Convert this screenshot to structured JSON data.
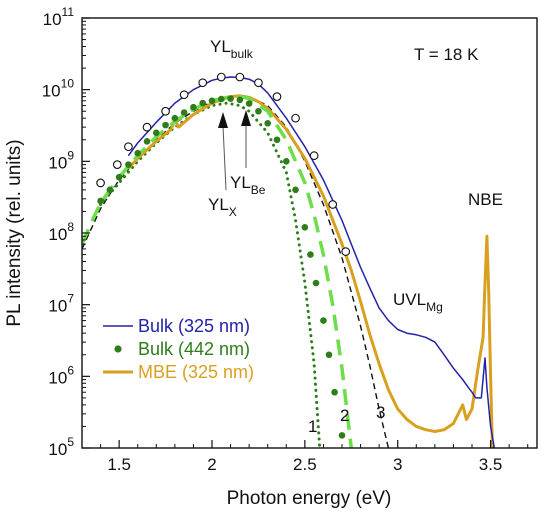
{
  "chart_data": {
    "type": "line",
    "xlabel": "Photon energy (eV)",
    "ylabel": "PL intensity (rel. units)",
    "xlim": [
      1.3,
      3.75
    ],
    "ylim": [
      100000,
      100000000000
    ],
    "yscale": "log",
    "x_ticks": [
      1.5,
      2,
      2.5,
      3,
      3.5
    ],
    "x_tick_labels": [
      "1.5",
      "2",
      "2.5",
      "3",
      "3.5"
    ],
    "y_ticks": [
      {
        "value": 100000,
        "base": "10",
        "exp": "5"
      },
      {
        "value": 1000000,
        "base": "10",
        "exp": "6"
      },
      {
        "value": 10000000,
        "base": "10",
        "exp": "7"
      },
      {
        "value": 100000000,
        "base": "10",
        "exp": "8"
      },
      {
        "value": 1000000000,
        "base": "10",
        "exp": "9"
      },
      {
        "value": 10000000000,
        "base": "10",
        "exp": "10"
      },
      {
        "value": 100000000000,
        "base": "10",
        "exp": "11"
      }
    ],
    "grid": false,
    "legend_position": "lower-left",
    "series": [
      {
        "name": "Bulk (325 nm)",
        "color": "#2222aa",
        "style": "solid-line",
        "x": [
          1.55,
          1.6,
          1.7,
          1.8,
          1.9,
          2.0,
          2.05,
          2.1,
          2.15,
          2.2,
          2.25,
          2.3,
          2.4,
          2.5,
          2.6,
          2.7,
          2.75,
          2.8,
          2.85,
          2.9,
          2.95,
          3.0,
          3.05,
          3.1,
          3.15,
          3.2,
          3.25,
          3.3,
          3.35,
          3.38,
          3.4,
          3.42,
          3.45,
          3.47,
          3.48,
          3.5,
          3.52
        ],
        "y": [
          1200000000,
          1800000000,
          3500000000,
          6500000000,
          10000000000,
          13500000000,
          14500000000,
          15000000000,
          14800000000,
          14000000000,
          12000000000,
          9000000000,
          4000000000,
          1600000000,
          550000000,
          150000000,
          70000000,
          33000000,
          17000000,
          9000000,
          6000000,
          4500000,
          4000000,
          3800000,
          3500000,
          3000000,
          2000000,
          1300000,
          900000,
          700000,
          600000,
          500000,
          500000,
          1800000,
          700000,
          200000,
          100000
        ]
      },
      {
        "name": "Bulk (442 nm)",
        "color": "#2e7d1a",
        "style": "dots",
        "x": [
          1.4,
          1.45,
          1.5,
          1.55,
          1.6,
          1.65,
          1.7,
          1.75,
          1.8,
          1.85,
          1.9,
          1.95,
          2.0,
          2.05,
          2.1,
          2.15,
          2.2,
          2.25,
          2.3,
          2.35,
          2.4,
          2.45,
          2.5,
          2.53,
          2.56,
          2.6,
          2.63,
          2.66,
          2.7
        ],
        "y": [
          280000000,
          400000000,
          600000000,
          900000000,
          1300000000,
          1900000000,
          2500000000,
          3200000000,
          4000000000,
          4800000000,
          5700000000,
          6500000000,
          7000000000,
          7400000000,
          7500000000,
          7200000000,
          6400000000,
          5000000000,
          3400000000,
          2000000000,
          1000000000,
          400000000,
          120000000,
          50000000,
          20000000,
          6000000,
          2000000,
          600000,
          150000
        ]
      },
      {
        "name": "MBE (325 nm)",
        "color": "#d9a020",
        "style": "thick-line",
        "x": [
          1.55,
          1.6,
          1.7,
          1.78,
          1.8,
          1.82,
          1.9,
          2.0,
          2.1,
          2.15,
          2.2,
          2.25,
          2.3,
          2.4,
          2.5,
          2.6,
          2.7,
          2.75,
          2.8,
          2.85,
          2.9,
          2.95,
          3.0,
          3.05,
          3.1,
          3.15,
          3.2,
          3.25,
          3.3,
          3.35,
          3.37,
          3.4,
          3.43,
          3.46,
          3.47,
          3.48,
          3.49,
          3.5,
          3.51
        ],
        "y": [
          800000000,
          1100000000,
          1900000000,
          2800000000,
          3800000000,
          3000000000,
          4500000000,
          6500000000,
          8000000000,
          8200000000,
          7800000000,
          6800000000,
          5500000000,
          2800000000,
          1100000000,
          330000000,
          70000000,
          30000000,
          11000000,
          3800000,
          1500000,
          650000,
          350000,
          250000,
          200000,
          180000,
          170000,
          180000,
          220000,
          400000,
          250000,
          350000,
          1200000,
          3500000,
          20000000,
          90000000,
          15000000,
          1000000,
          100000
        ]
      },
      {
        "name": "",
        "color": "#111111",
        "style": "open-circles",
        "x": [
          1.4,
          1.49,
          1.55,
          1.65,
          1.75,
          1.85,
          1.95,
          2.05,
          2.15,
          2.25,
          2.35,
          2.45,
          2.55,
          2.65,
          2.72
        ],
        "y": [
          500000000,
          900000000,
          1600000000,
          3000000000,
          5000000000,
          8500000000,
          12500000000,
          15000000000,
          15000000000,
          12500000000,
          8000000000,
          4000000000,
          1200000000,
          250000000,
          55000000
        ]
      },
      {
        "name": "",
        "color": "#2e7d1a",
        "style": "dotted-curve",
        "x": [
          1.4,
          1.5,
          1.6,
          1.7,
          1.8,
          1.9,
          2.0,
          2.08,
          2.15,
          2.2,
          2.3,
          2.4,
          2.45,
          2.5,
          2.55,
          2.58
        ],
        "y": [
          250000000,
          500000000,
          1000000000,
          1800000000,
          3000000000,
          4500000000,
          6000000000,
          6500000000,
          6000000000,
          5000000000,
          2500000000,
          700000000,
          150000000,
          20000000,
          1500000,
          100000
        ]
      },
      {
        "name": "",
        "color": "#6ddd4a",
        "style": "dashed-curve",
        "x": [
          1.3,
          1.35,
          1.4,
          1.45,
          1.5,
          1.6,
          1.7,
          1.8,
          1.9,
          2.0,
          2.1,
          2.15,
          2.2,
          2.3,
          2.4,
          2.5,
          2.55,
          2.6,
          2.65,
          2.7,
          2.75
        ],
        "y": [
          70000000,
          140000000,
          260000000,
          400000000,
          600000000,
          1200000000,
          2200000000,
          3600000000,
          5300000000,
          7000000000,
          8000000000,
          8000000000,
          7500000000,
          5000000000,
          2000000000,
          500000000,
          180000000,
          50000000,
          10000000,
          1300000,
          100000
        ]
      },
      {
        "name": "",
        "color": "#111111",
        "style": "dashed-curve-thin",
        "x": [
          1.3,
          1.4,
          1.5,
          1.6,
          1.7,
          1.8,
          1.9,
          2.0,
          2.1,
          2.15,
          2.2,
          2.3,
          2.4,
          2.5,
          2.6,
          2.7,
          2.8,
          2.85,
          2.9,
          2.95
        ],
        "y": [
          60000000,
          220000000,
          550000000,
          1100000000,
          2000000000,
          3400000000,
          5000000000,
          6800000000,
          8000000000,
          8300000000,
          8000000000,
          6000000000,
          3000000000,
          1000000000,
          250000000,
          45000000,
          5000000,
          1400000,
          350000,
          100000
        ]
      }
    ],
    "annotations": {
      "temperature": "T = 18 K",
      "yl_bulk_main": "YL",
      "yl_bulk_sub": "bulk",
      "yl_be_main": "YL",
      "yl_be_sub": "Be",
      "yl_x_main": "YL",
      "yl_x_sub": "X",
      "uvl_main": "UVL",
      "uvl_sub": "Mg",
      "nbe": "NBE",
      "curve_1": "1",
      "curve_2": "2",
      "curve_3": "3"
    }
  }
}
